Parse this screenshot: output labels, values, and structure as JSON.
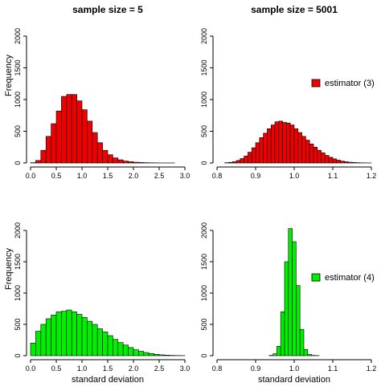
{
  "column_titles": [
    "sample size = 5",
    "sample size = 5001"
  ],
  "chart_data": [
    {
      "type": "bar",
      "panel": "top-left",
      "xlim": [
        0,
        3.0
      ],
      "ylim": [
        0,
        2000
      ],
      "xticks": [
        0.0,
        0.5,
        1.0,
        1.5,
        2.0,
        2.5,
        3.0
      ],
      "xtick_labels": [
        "0.0",
        "0.5",
        "1.0",
        "1.5",
        "2.0",
        "2.5",
        "3.0"
      ],
      "yticks": [
        0,
        500,
        1000,
        1500,
        2000
      ],
      "ytick_labels": [
        "0",
        "500",
        "1000",
        "1500",
        "2000"
      ],
      "xlabel": "",
      "ylabel": "Frequency",
      "color": "#ee0000",
      "bin_start": 0.0,
      "bin_width": 0.1,
      "values": [
        5,
        40,
        200,
        420,
        620,
        820,
        1050,
        1080,
        1080,
        980,
        840,
        660,
        480,
        320,
        200,
        130,
        80,
        50,
        30,
        20,
        12,
        8,
        5,
        3,
        2,
        1,
        1,
        1
      ]
    },
    {
      "type": "bar",
      "panel": "top-right",
      "xlim": [
        0.8,
        1.2
      ],
      "ylim": [
        0,
        2000
      ],
      "xticks": [
        0.8,
        0.9,
        1.0,
        1.1,
        1.2
      ],
      "xtick_labels": [
        "0.8",
        "0.9",
        "1.0",
        "1.1",
        "1.2"
      ],
      "yticks": [
        0,
        500,
        1000,
        1500,
        2000
      ],
      "ytick_labels": [
        "0",
        "500",
        "1000",
        "1500",
        "2000"
      ],
      "xlabel": "",
      "ylabel": "",
      "color": "#ee0000",
      "legend": "estimator (3)",
      "bin_start": 0.82,
      "bin_width": 0.01,
      "values": [
        5,
        10,
        20,
        40,
        70,
        110,
        170,
        240,
        320,
        400,
        470,
        540,
        600,
        650,
        660,
        640,
        630,
        600,
        540,
        480,
        420,
        360,
        300,
        250,
        200,
        160,
        120,
        90,
        65,
        45,
        30,
        20,
        12,
        8,
        5,
        3,
        2,
        1
      ]
    },
    {
      "type": "bar",
      "panel": "bottom-left",
      "xlim": [
        0,
        3.0
      ],
      "ylim": [
        0,
        2000
      ],
      "xticks": [
        0.0,
        0.5,
        1.0,
        1.5,
        2.0,
        2.5,
        3.0
      ],
      "xtick_labels": [
        "0.0",
        "0.5",
        "1.0",
        "1.5",
        "2.0",
        "2.5",
        "3.0"
      ],
      "yticks": [
        0,
        500,
        1000,
        1500,
        2000
      ],
      "ytick_labels": [
        "0",
        "500",
        "1000",
        "1500",
        "2000"
      ],
      "xlabel": "standard deviation",
      "ylabel": "Frequency",
      "color": "#00ee00",
      "bin_start": 0.0,
      "bin_width": 0.1,
      "values": [
        200,
        390,
        500,
        590,
        650,
        700,
        710,
        730,
        700,
        660,
        610,
        550,
        500,
        430,
        380,
        320,
        260,
        210,
        170,
        130,
        95,
        70,
        50,
        35,
        22,
        14,
        8,
        5,
        3,
        2
      ]
    },
    {
      "type": "bar",
      "panel": "bottom-right",
      "xlim": [
        0.8,
        1.2
      ],
      "ylim": [
        0,
        2000
      ],
      "xticks": [
        0.8,
        0.9,
        1.0,
        1.1,
        1.2
      ],
      "xtick_labels": [
        "0.8",
        "0.9",
        "1.0",
        "1.1",
        "1.2"
      ],
      "yticks": [
        0,
        500,
        1000,
        1500,
        2000
      ],
      "ytick_labels": [
        "0",
        "500",
        "1000",
        "1500",
        "2000"
      ],
      "xlabel": "standard deviation",
      "ylabel": "",
      "color": "#00ee00",
      "legend": "estimator (4)",
      "bin_start": 0.935,
      "bin_width": 0.01,
      "values": [
        5,
        30,
        150,
        700,
        1500,
        2030,
        1820,
        1120,
        420,
        100,
        20,
        5,
        2
      ]
    }
  ]
}
